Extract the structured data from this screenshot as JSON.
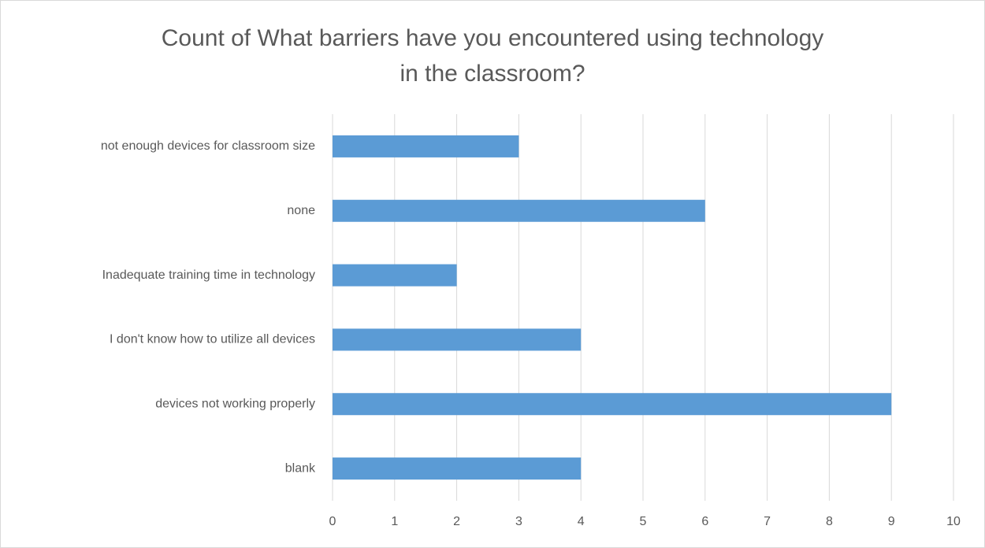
{
  "chart_data": {
    "type": "barh",
    "title": [
      "Count of What barriers have you encountered using technology",
      "in the classroom?"
    ],
    "categories": [
      "not enough devices for classroom size",
      "none",
      "Inadequate training time in technology",
      "I don't know how to utilize all devices",
      "devices not working properly",
      "blank"
    ],
    "values": [
      3,
      6,
      2,
      4,
      9,
      4
    ],
    "color": "#5b9bd5",
    "xlim": [
      0,
      10
    ],
    "xticks": [
      0,
      1,
      2,
      3,
      4,
      5,
      6,
      7,
      8,
      9,
      10
    ],
    "grid": true
  }
}
